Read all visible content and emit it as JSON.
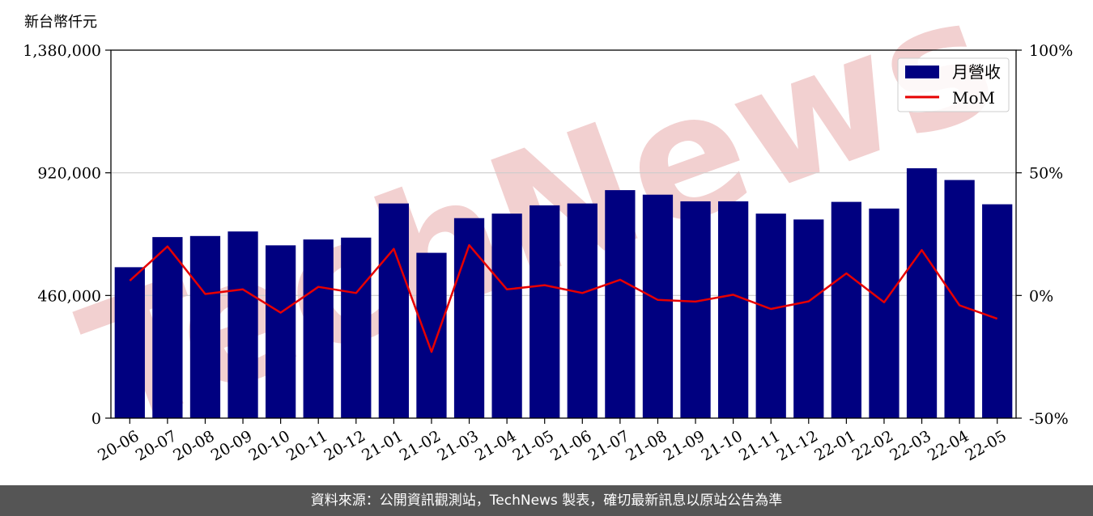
{
  "unit_label": "新台幣仟元",
  "watermark": "TechNews",
  "footer_text": "資料來源：公開資訊觀測站，TechNews 製表，確切最新訊息以原站公告為準",
  "colors": {
    "bar": "#000080",
    "line": "#e60000",
    "grid": "#cccccc",
    "watermark": "#f2d0d0"
  },
  "chart_data": {
    "type": "bar",
    "categories": [
      "20-06",
      "20-07",
      "20-08",
      "20-09",
      "20-10",
      "20-11",
      "20-12",
      "21-01",
      "21-02",
      "21-03",
      "21-04",
      "21-05",
      "21-06",
      "21-07",
      "21-08",
      "21-09",
      "21-10",
      "21-11",
      "21-12",
      "22-01",
      "22-02",
      "22-03",
      "22-04",
      "22-05"
    ],
    "series": [
      {
        "name": "月營收",
        "axis": "left",
        "kind": "bar",
        "values": [
          566000,
          679000,
          683000,
          700000,
          648000,
          670000,
          677000,
          805000,
          620000,
          750000,
          767000,
          798000,
          805000,
          855000,
          838000,
          813000,
          813000,
          767000,
          745000,
          811000,
          786000,
          937000,
          893000,
          802000
        ]
      },
      {
        "name": "MoM",
        "axis": "right",
        "kind": "line",
        "values": [
          6,
          20,
          0.6,
          2.5,
          -7,
          3.5,
          1,
          19,
          -23,
          20.5,
          2.5,
          4.2,
          1,
          6.4,
          -1.8,
          -2.5,
          0.3,
          -5.5,
          -2.4,
          9,
          -2.8,
          18.5,
          -4,
          -9.5
        ]
      }
    ],
    "ylim": [
      0,
      1380000
    ],
    "yticks": [
      "0",
      "460,000",
      "920,000",
      "1,380,000"
    ],
    "y2lim": [
      -50,
      100
    ],
    "y2ticks": [
      "-50%",
      "0%",
      "50%",
      "100%"
    ],
    "grid": "horizontal",
    "legend_position": "top-right",
    "xlabel": "",
    "ylabel": ""
  }
}
